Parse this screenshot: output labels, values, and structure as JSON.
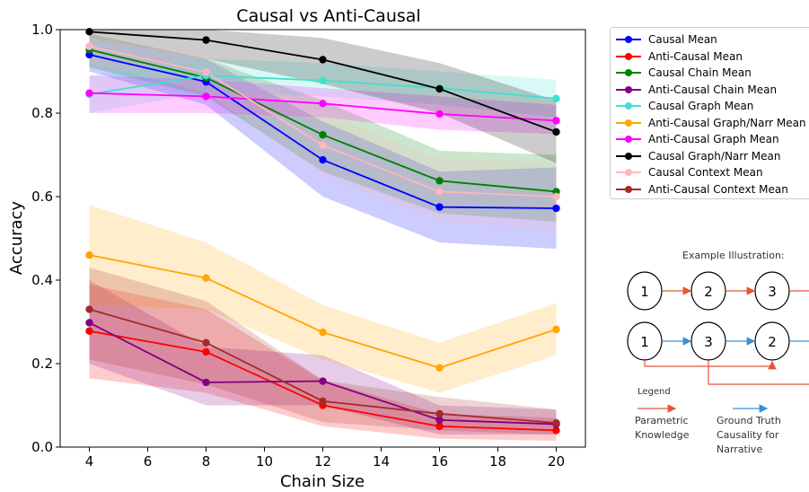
{
  "chart_data": {
    "type": "line",
    "title": "Causal vs Anti-Causal",
    "xlabel": "Chain Size",
    "ylabel": "Accuracy",
    "x": [
      4,
      8,
      12,
      16,
      20
    ],
    "xlim": [
      3,
      21
    ],
    "ylim": [
      0.0,
      1.0
    ],
    "xticks": [
      "4",
      "6",
      "8",
      "10",
      "12",
      "14",
      "16",
      "18",
      "20"
    ],
    "yticks": [
      "0.0",
      "0.2",
      "0.4",
      "0.6",
      "0.8",
      "1.0"
    ],
    "grid": false,
    "legend_position": "outside-right",
    "series": [
      {
        "name": "Causal Mean",
        "color": "#0000ff",
        "values": [
          0.94,
          0.875,
          0.688,
          0.575,
          0.572
        ],
        "lower": [
          0.9,
          0.82,
          0.6,
          0.49,
          0.475
        ],
        "upper": [
          0.98,
          0.93,
          0.78,
          0.66,
          0.67
        ]
      },
      {
        "name": "Anti-Causal Mean",
        "color": "#ff0000",
        "values": [
          0.278,
          0.228,
          0.1,
          0.05,
          0.04
        ],
        "lower": [
          0.165,
          0.13,
          0.05,
          0.02,
          0.015
        ],
        "upper": [
          0.39,
          0.33,
          0.16,
          0.08,
          0.07
        ]
      },
      {
        "name": "Causal Chain Mean",
        "color": "#008000",
        "values": [
          0.952,
          0.885,
          0.748,
          0.638,
          0.612
        ],
        "lower": [
          0.91,
          0.84,
          0.66,
          0.56,
          0.54
        ],
        "upper": [
          0.99,
          0.93,
          0.83,
          0.71,
          0.7
        ]
      },
      {
        "name": "Anti-Causal Chain Mean",
        "color": "#800080",
        "values": [
          0.298,
          0.155,
          0.158,
          0.065,
          0.055
        ],
        "lower": [
          0.2,
          0.1,
          0.1,
          0.03,
          0.03
        ],
        "upper": [
          0.4,
          0.24,
          0.22,
          0.1,
          0.09
        ]
      },
      {
        "name": "Causal Graph Mean",
        "color": "#40e0d0",
        "values": [
          0.845,
          0.89,
          0.878,
          0.86,
          0.835
        ],
        "lower": [
          0.8,
          0.85,
          0.84,
          0.82,
          0.79
        ],
        "upper": [
          0.89,
          0.93,
          0.92,
          0.9,
          0.88
        ]
      },
      {
        "name": "Anti-Causal Graph/Narr Mean",
        "color": "#ffa500",
        "values": [
          0.46,
          0.405,
          0.275,
          0.19,
          0.282
        ],
        "lower": [
          0.34,
          0.33,
          0.21,
          0.13,
          0.22
        ],
        "upper": [
          0.58,
          0.49,
          0.34,
          0.25,
          0.345
        ]
      },
      {
        "name": "Anti-Causal Graph Mean",
        "color": "#ff00ff",
        "values": [
          0.848,
          0.84,
          0.823,
          0.798,
          0.782
        ],
        "lower": [
          0.8,
          0.8,
          0.79,
          0.76,
          0.75
        ],
        "upper": [
          0.89,
          0.88,
          0.86,
          0.84,
          0.82
        ]
      },
      {
        "name": "Causal Graph/Narr Mean",
        "color": "#000000",
        "values": [
          0.995,
          0.975,
          0.928,
          0.858,
          0.755
        ],
        "lower": [
          0.98,
          0.93,
          0.87,
          0.8,
          0.68
        ],
        "upper": [
          1.0,
          1.0,
          0.98,
          0.92,
          0.83
        ]
      },
      {
        "name": "Causal Context Mean",
        "color": "#ffb6c1",
        "values": [
          0.96,
          0.898,
          0.723,
          0.612,
          0.6
        ],
        "lower": [
          0.92,
          0.85,
          0.65,
          0.54,
          0.52
        ],
        "upper": [
          0.99,
          0.94,
          0.8,
          0.69,
          0.68
        ]
      },
      {
        "name": "Anti-Causal Context Mean",
        "color": "#a52a2a",
        "values": [
          0.33,
          0.25,
          0.11,
          0.08,
          0.058
        ],
        "lower": [
          0.21,
          0.15,
          0.06,
          0.04,
          0.03
        ],
        "upper": [
          0.43,
          0.35,
          0.16,
          0.12,
          0.09
        ]
      }
    ]
  },
  "illustration": {
    "title": "Example Illustration:",
    "top_row_nodes": [
      "1",
      "2",
      "3"
    ],
    "bottom_row_nodes": [
      "1",
      "3",
      "2"
    ],
    "legend_heading": "Legend",
    "parametric_label_1": "Parametric",
    "parametric_label_2": "Knowledge",
    "ground_truth_label_1": "Ground Truth",
    "ground_truth_label_2": "Causality for",
    "ground_truth_label_3": "Narrative",
    "parametric_color": "#e8533a",
    "ground_truth_color": "#3a8fd8"
  }
}
